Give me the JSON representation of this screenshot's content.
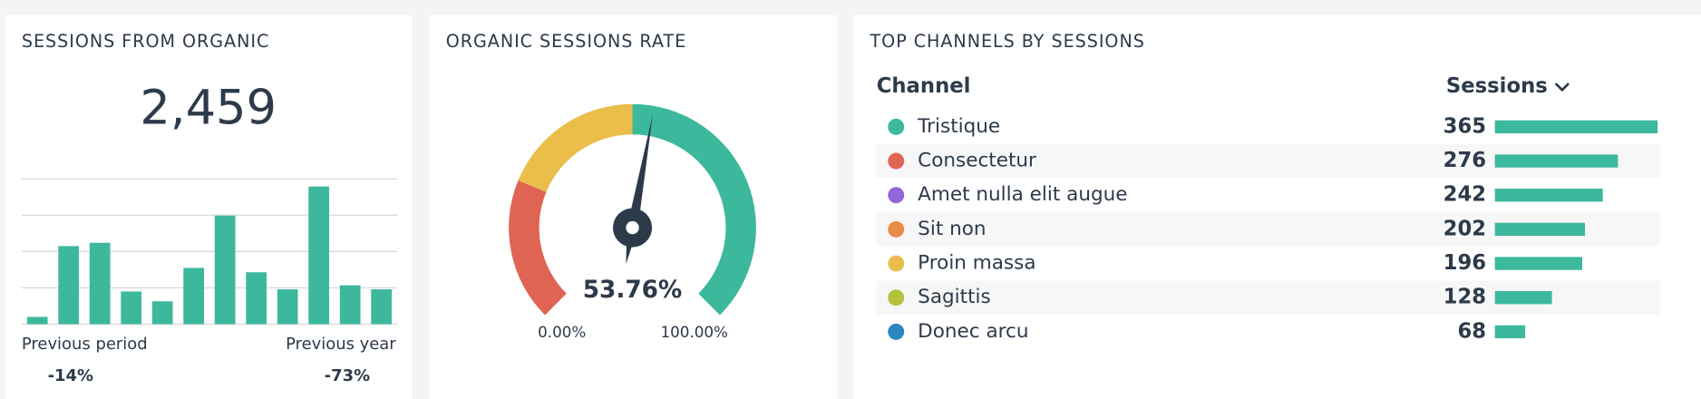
{
  "chart_data": [
    {
      "type": "bar",
      "title": "SESSIONS FROM ORGANIC",
      "total": {
        "value": 2459,
        "label": "2,459"
      },
      "categories": [
        null,
        null,
        null,
        null,
        null,
        null,
        null,
        null,
        null,
        null,
        null,
        null
      ],
      "values": [
        0.2,
        2.15,
        2.24,
        0.9,
        0.63,
        1.55,
        2.99,
        1.43,
        0.96,
        3.79,
        1.07,
        0.96
      ],
      "color": "#3cb89d",
      "ylim": [
        0,
        4
      ],
      "yticks": [
        0,
        1,
        2,
        3,
        4
      ],
      "grid": true,
      "comparisons": [
        {
          "name": "Previous period",
          "value": -14,
          "label": "-14%"
        },
        {
          "name": "Previous year",
          "value": -73,
          "label": "-73%"
        }
      ]
    },
    {
      "type": "gauge",
      "title": "ORGANIC SESSIONS RATE",
      "value": 53.76,
      "value_label": "53.76%",
      "min": {
        "value": 0,
        "label": "0.00%"
      },
      "max": {
        "value": 100,
        "label": "100.00%"
      },
      "bands": [
        {
          "from": 0,
          "to": 25,
          "color": "#e06454"
        },
        {
          "from": 25,
          "to": 50,
          "color": "#ebbd4b"
        },
        {
          "from": 50,
          "to": 100,
          "color": "#3cb89d"
        }
      ]
    },
    {
      "type": "table-bar",
      "title": "TOP CHANNELS BY SESSIONS",
      "columns": [
        "Channel",
        "Sessions"
      ],
      "categories": [
        "Tristique",
        "Consectetur",
        "Amet nulla elit augue",
        "Sit non",
        "Proin massa",
        "Sagittis",
        "Donec arcu"
      ],
      "values": [
        365,
        276,
        242,
        202,
        196,
        128,
        68
      ],
      "colors": [
        "#3cb89d",
        "#e06454",
        "#8f67d6",
        "#e98c4a",
        "#e9bd4b",
        "#b3c13b",
        "#2f87bf"
      ],
      "bar_color": "#3cb89d",
      "xlim": [
        0,
        365
      ]
    }
  ]
}
